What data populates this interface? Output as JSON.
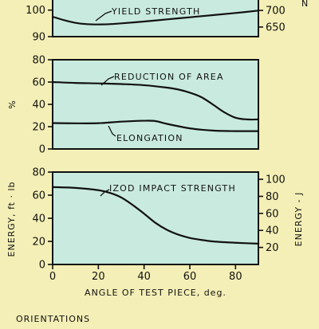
{
  "chart_data": [
    {
      "type": "line",
      "panel": "strength",
      "xlim": [
        0,
        90
      ],
      "ylim": [
        90,
        105
      ],
      "yticks": [
        90,
        100
      ],
      "y2ticks": [
        650,
        700
      ],
      "y2lim": [
        621,
        741
      ],
      "series": [
        {
          "name": "YIELD STRENGTH",
          "x": [
            0,
            5,
            10,
            15,
            20,
            25,
            30,
            40,
            50,
            60,
            70,
            80,
            90
          ],
          "y": [
            97.5,
            96.2,
            95.2,
            94.7,
            94.6,
            94.7,
            95.0,
            95.7,
            96.5,
            97.3,
            98.1,
            98.9,
            99.8
          ]
        }
      ]
    },
    {
      "type": "line",
      "panel": "ductility",
      "xlim": [
        0,
        90
      ],
      "ylim": [
        0,
        80
      ],
      "yticks": [
        0,
        20,
        40,
        60,
        80
      ],
      "ylabel": "%",
      "series": [
        {
          "name": "REDUCTION OF AREA",
          "x": [
            0,
            10,
            20,
            30,
            40,
            50,
            55,
            60,
            65,
            70,
            75,
            80,
            85,
            90
          ],
          "y": [
            60,
            59.2,
            58.8,
            58.2,
            57.2,
            55.0,
            53.3,
            50.5,
            46.5,
            40.0,
            33.0,
            28.0,
            26.5,
            26.5
          ]
        },
        {
          "name": "ELONGATION",
          "x": [
            0,
            10,
            20,
            30,
            40,
            45,
            50,
            60,
            70,
            80,
            90
          ],
          "y": [
            23.2,
            23.0,
            23.1,
            24.5,
            25.3,
            25.0,
            22.5,
            18.5,
            16.5,
            16.0,
            16.0
          ]
        }
      ]
    },
    {
      "type": "line",
      "panel": "energy",
      "xlim": [
        0,
        90
      ],
      "ylim": [
        0,
        80
      ],
      "yticks": [
        0,
        20,
        40,
        60,
        80
      ],
      "ylabel": "ENERGY, ft · lb",
      "y2ticks": [
        20,
        40,
        60,
        80,
        100
      ],
      "y2lim": [
        0,
        108.5
      ],
      "y2label": "ENERGY - J",
      "xticks": [
        0,
        20,
        40,
        60,
        80
      ],
      "xlabel": "ANGLE OF TEST PIECE, deg.",
      "series": [
        {
          "name": "IZOD IMPACT STRENGTH",
          "x": [
            0,
            10,
            20,
            25,
            30,
            35,
            40,
            45,
            50,
            55,
            60,
            65,
            70,
            75,
            80,
            90
          ],
          "y": [
            67,
            66.3,
            64.3,
            62.0,
            58.0,
            51.5,
            44.0,
            36.0,
            30.0,
            25.8,
            23.0,
            21.3,
            20.0,
            19.3,
            18.8,
            18.0
          ]
        }
      ]
    }
  ],
  "top_right_partial": "N",
  "footer": {
    "title": "ORIENTATIONS"
  }
}
